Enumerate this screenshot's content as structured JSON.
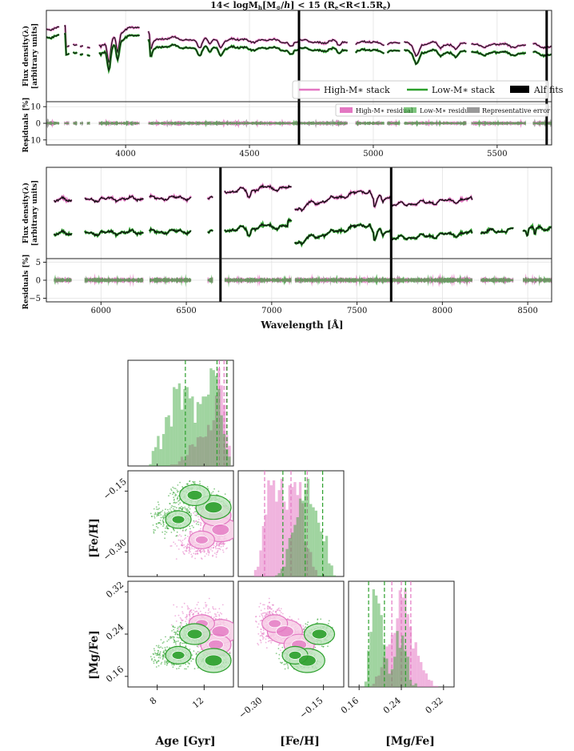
{
  "chart_data": [
    {
      "type": "line",
      "panel": "top-spectrum",
      "title": "14< logM_h[M_⊙/h] < 15 (R_e<R<1.5R_e)",
      "title_parts": {
        "a": "14< logM",
        "b": "h",
        "c": "[M",
        "d": "⊙",
        "e": "/",
        "f": "h",
        "g": "] < 15 (R",
        "h": "e",
        "i": "<R<1.5R",
        "j": "e",
        "k": ")"
      },
      "ylabel_lines": [
        "Flux density(λ)",
        "[arbitrary units]"
      ],
      "xlim": [
        3680,
        5720
      ],
      "xticks": [
        4000,
        4500,
        5000,
        5500
      ],
      "xtick_labels": [
        "4000",
        "4500",
        "5000",
        "5500"
      ],
      "vlines": [
        4700,
        5700
      ],
      "legend": {
        "position": "lower-right",
        "entries": [
          "High-M∗ stack",
          "Low-M∗ stack",
          "Alf fits"
        ]
      },
      "series": [
        {
          "name": "High-M∗ stack",
          "color": "#e377c2"
        },
        {
          "name": "Low-M∗ stack",
          "color": "#2ca02c"
        },
        {
          "name": "Alf fits",
          "color": "#000000"
        }
      ]
    },
    {
      "type": "area",
      "panel": "top-residuals",
      "ylabel": "Residuals [%]",
      "ylim": [
        -13,
        13
      ],
      "yticks": [
        -10,
        0,
        10
      ],
      "ytick_labels": [
        "−10",
        "0",
        "10"
      ],
      "legend": {
        "position": "top-right",
        "entries": [
          "High-M∗ residual",
          "Low-M∗ residual",
          "Representative error"
        ]
      }
    },
    {
      "type": "line",
      "panel": "bottom-spectrum",
      "ylabel_lines": [
        "Flux density(λ)",
        "[arbitrary units]"
      ],
      "xlim": [
        5680,
        8640
      ],
      "xticks": [
        6000,
        6500,
        7000,
        7500,
        8000,
        8500
      ],
      "xtick_labels": [
        "6000",
        "6500",
        "7000",
        "7500",
        "8000",
        "8500"
      ],
      "vlines": [
        6700,
        7700
      ]
    },
    {
      "type": "area",
      "panel": "bottom-residuals",
      "ylabel": "Residuals [%]",
      "ylim": [
        -6,
        6
      ],
      "yticks": [
        -5,
        0,
        5
      ],
      "ytick_labels": [
        "−5",
        "0",
        "5"
      ],
      "xlabel": "Wavelength [Å]"
    },
    {
      "type": "scatter",
      "panel": "corner-plot",
      "parameters": [
        "Age [Gyr]",
        "[Fe/H]",
        "[Mg/Fe]"
      ],
      "ranges": {
        "age": [
          5.5,
          14.5
        ],
        "feh": [
          -0.36,
          -0.1
        ],
        "mgfe": [
          0.14,
          0.34
        ]
      },
      "ticks": {
        "age": {
          "values": [
            8,
            12
          ],
          "labels": [
            "8",
            "12"
          ]
        },
        "feh": {
          "values": [
            -0.3,
            -0.15
          ],
          "labels": [
            "−0.30",
            "−0.15"
          ]
        },
        "mgfe": {
          "values": [
            0.16,
            0.24,
            0.32
          ],
          "labels": [
            "0.16",
            "0.24",
            "0.32"
          ]
        }
      },
      "quantiles": {
        "High-M∗": {
          "age": [
            13.3,
            13.7,
            13.9
          ],
          "feh": [
            -0.295,
            -0.23,
            -0.19
          ],
          "mgfe": [
            0.222,
            0.24,
            0.258
          ]
        },
        "Low-M∗": {
          "age": [
            10.4,
            13.1,
            13.95
          ],
          "feh": [
            -0.25,
            -0.195,
            -0.152
          ],
          "mgfe": [
            0.178,
            0.208,
            0.248
          ]
        }
      },
      "series": [
        {
          "name": "High-M∗",
          "color": "#e377c2"
        },
        {
          "name": "Low-M∗",
          "color": "#2ca02c"
        }
      ]
    }
  ]
}
